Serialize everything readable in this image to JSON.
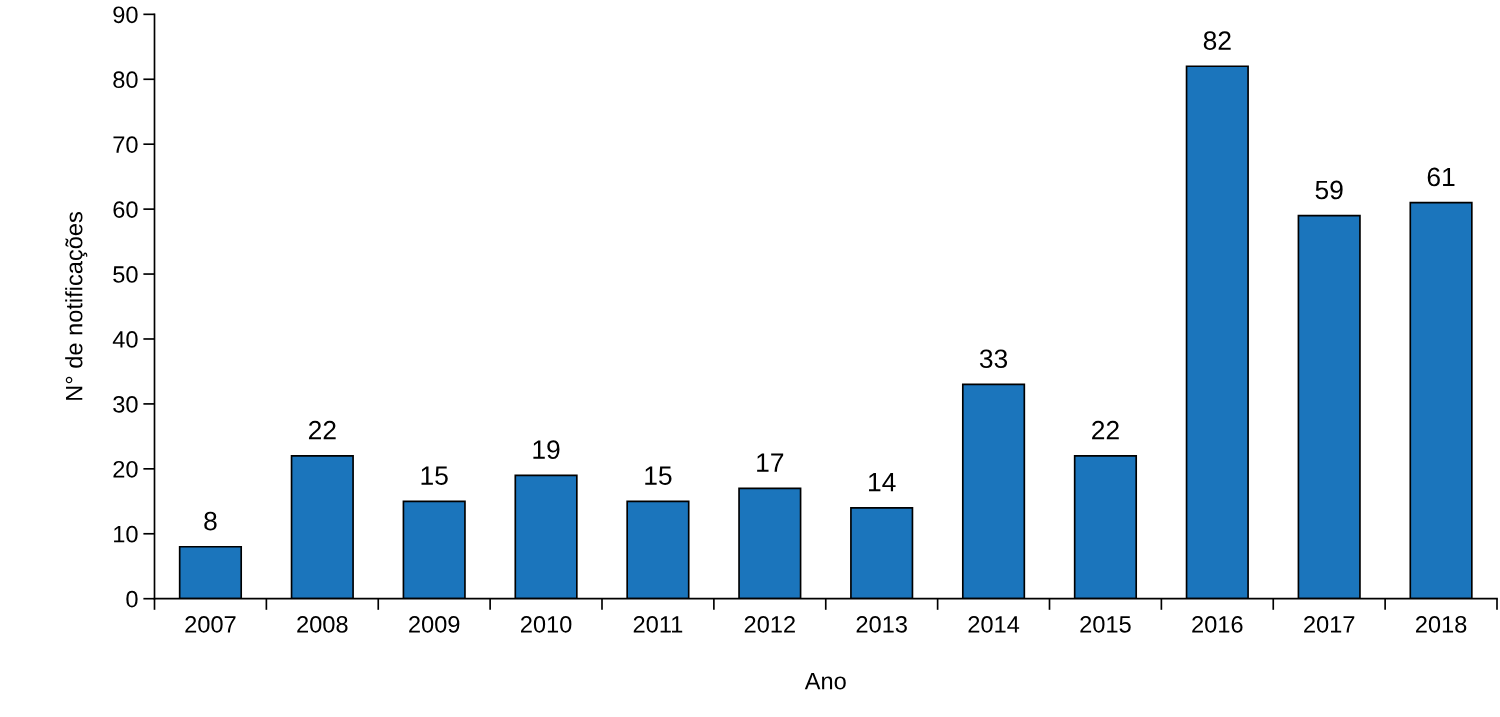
{
  "chart_data": {
    "type": "bar",
    "xlabel": "Ano",
    "ylabel": "N° de notificações",
    "categories": [
      "2007",
      "2008",
      "2009",
      "2010",
      "2011",
      "2012",
      "2013",
      "2014",
      "2015",
      "2016",
      "2017",
      "2018"
    ],
    "values": [
      8,
      22,
      15,
      19,
      15,
      17,
      14,
      33,
      22,
      82,
      59,
      61
    ],
    "color": "#1b75bc",
    "ylim": [
      0,
      90
    ],
    "yticks": [
      0,
      10,
      20,
      30,
      40,
      50,
      60,
      70,
      80,
      90
    ],
    "data_labels": true,
    "grid": false,
    "legend": false
  }
}
